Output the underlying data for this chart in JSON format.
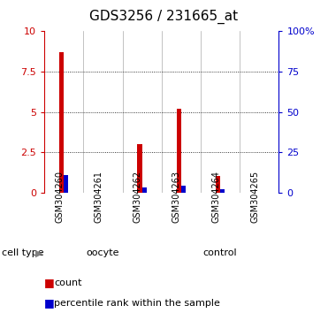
{
  "title": "GDS3256 / 231665_at",
  "samples": [
    "GSM304260",
    "GSM304261",
    "GSM304262",
    "GSM304263",
    "GSM304264",
    "GSM304265"
  ],
  "count_values": [
    8.7,
    0.0,
    3.0,
    5.2,
    1.0,
    0.0
  ],
  "percentile_values": [
    1.1,
    0.0,
    0.3,
    0.4,
    0.2,
    0.0
  ],
  "ylim_left": [
    0,
    10
  ],
  "ylim_right": [
    0,
    100
  ],
  "yticks_left": [
    0,
    2.5,
    5.0,
    7.5,
    10
  ],
  "yticks_right": [
    0,
    25,
    50,
    75,
    100
  ],
  "ytick_labels_left": [
    "0",
    "2.5",
    "5",
    "7.5",
    "10"
  ],
  "ytick_labels_right": [
    "0",
    "25",
    "50",
    "75",
    "100%"
  ],
  "groups": [
    {
      "label": "oocyte",
      "start": 0,
      "end": 3,
      "color": "#bbffbb"
    },
    {
      "label": "control",
      "start": 3,
      "end": 6,
      "color": "#44ee44"
    }
  ],
  "count_color": "#cc0000",
  "percentile_color": "#0000cc",
  "bg_color": "#ffffff",
  "left_axis_color": "#cc0000",
  "right_axis_color": "#0000cc",
  "grid_color": "#000000",
  "sample_bg_color": "#cccccc",
  "cell_type_label": "cell type",
  "legend_count": "count",
  "legend_percentile": "percentile rank within the sample",
  "title_fontsize": 11,
  "tick_fontsize": 8,
  "label_fontsize": 8,
  "sample_fontsize": 7
}
